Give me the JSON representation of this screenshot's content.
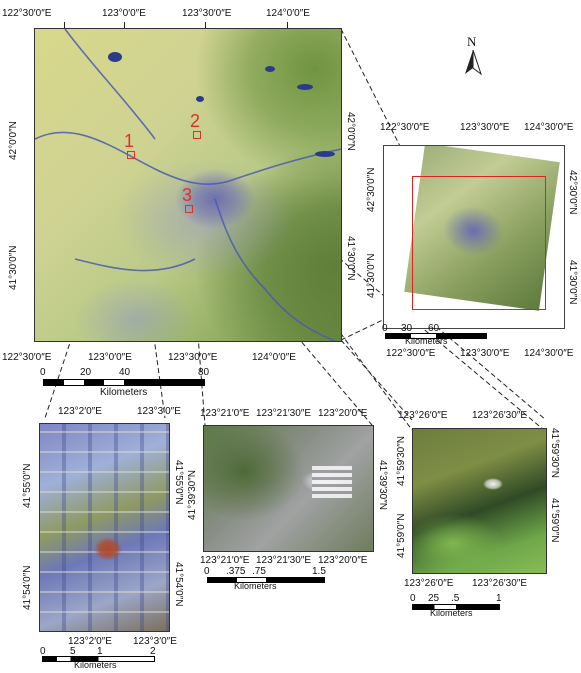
{
  "main_map": {
    "top_labels": [
      "122°30′0″E",
      "123°0′0″E",
      "123°30′0″E",
      "124°0′0″E"
    ],
    "bottom_labels": [
      "122°30′0″E",
      "123°0′0″E",
      "123°30′0″E",
      "124°0′0″E"
    ],
    "left_labels": [
      "42°0′0″N",
      "41°30′0″N"
    ],
    "right_labels": [
      "42°0′0″N",
      "41°30′0″N"
    ],
    "markers": [
      "1",
      "2",
      "3"
    ],
    "scale": {
      "ticks": [
        "0",
        "20",
        "40",
        "80"
      ],
      "unit": "Kilometers"
    }
  },
  "north_arrow": {
    "label": "N"
  },
  "inset_map": {
    "top_labels": [
      "122°30′0″E",
      "123°30′0″E",
      "124°30′0″E"
    ],
    "bottom_labels": [
      "122°30′0″E",
      "123°30′0″E",
      "124°30′0″E"
    ],
    "left_labels": [
      "42°30′0″N",
      "41°30′0″N"
    ],
    "right_labels": [
      "42°30′0″N",
      "41°30′0″N"
    ],
    "scale": {
      "ticks": [
        "0",
        "30",
        "60"
      ],
      "unit": "Kilometers"
    }
  },
  "detail_1": {
    "top_labels": [
      "123°2′0″E",
      "123°3′0″E"
    ],
    "bottom_labels": [
      "123°2′0″E",
      "123°3′0″E"
    ],
    "left_labels": [
      "41°55′0″N",
      "41°54′0″N"
    ],
    "right_labels": [
      "41°55′0″N",
      "41°54′0″N"
    ],
    "scale": {
      "ticks": [
        "0",
        "5",
        "1",
        "2"
      ],
      "unit": "Kilometers"
    }
  },
  "detail_2": {
    "top_labels": [
      "123°21′0″E",
      "123°21′30″E",
      "123°20′0″E"
    ],
    "bottom_labels": [
      "123°21′0″E",
      "123°21′30″E",
      "123°20′0″E"
    ],
    "left_labels": [
      "41°39′30″N"
    ],
    "right_labels": [
      "41°39′30″N"
    ],
    "scale": {
      "ticks": [
        "0",
        ".375",
        ".75",
        "1.5"
      ],
      "unit": "Kilometers"
    }
  },
  "detail_3": {
    "top_labels": [
      "123°26′0″E",
      "123°26′30″E"
    ],
    "bottom_labels": [
      "123°26′0″E",
      "123°26′30″E"
    ],
    "left_labels": [
      "41°59′30″N",
      "41°59′0″N"
    ],
    "right_labels": [
      "41°59′30″N",
      "41°59′0″N"
    ],
    "scale": {
      "ticks": [
        "0",
        "25",
        ".5",
        "1"
      ],
      "unit": "Kilometers"
    }
  }
}
